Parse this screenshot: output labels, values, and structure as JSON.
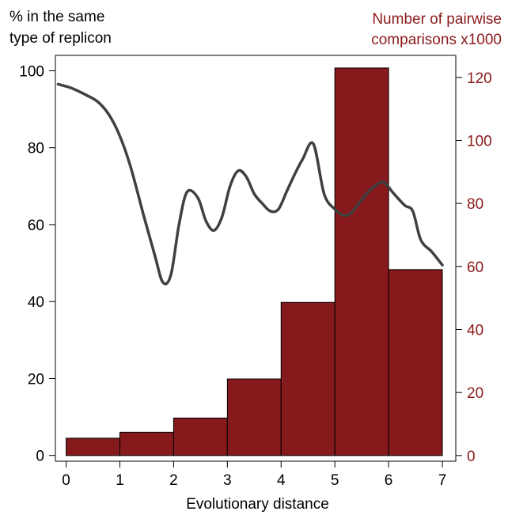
{
  "chart_data": {
    "type": "bar",
    "title": "",
    "xlabel": "Evolutionary distance",
    "ylabel_left": "% in the same\ntype of replicon",
    "ylabel_right": "Number of pairwise\ncomparisons x1000",
    "x_ticks": [
      "0",
      "1",
      "2",
      "3",
      "4",
      "5",
      "6",
      "7"
    ],
    "xlim": [
      -0.2,
      7.25
    ],
    "y_left_ticks": [
      "0",
      "20",
      "40",
      "60",
      "80",
      "100"
    ],
    "y_left_lim": [
      -1.5,
      104
    ],
    "y_right_ticks": [
      "0",
      "20",
      "40",
      "60",
      "80",
      "100",
      "120"
    ],
    "y_right_lim": [
      -1.8,
      127
    ],
    "grid": false,
    "bar_color": "#85191b",
    "right_axis_color": "#8b1a1a",
    "line_color": "#404040",
    "bars": {
      "axis": "right",
      "bins": [
        [
          0,
          1
        ],
        [
          1,
          2
        ],
        [
          2,
          3
        ],
        [
          3,
          4
        ],
        [
          4,
          5
        ],
        [
          5,
          6
        ],
        [
          6,
          7
        ]
      ],
      "values": [
        5.5,
        7.4,
        11.9,
        24.3,
        48.6,
        123.0,
        59.0
      ]
    },
    "line": {
      "axis": "left",
      "x": [
        -0.15,
        0.1,
        0.4,
        0.6,
        0.8,
        1.0,
        1.2,
        1.45,
        1.65,
        1.8,
        1.95,
        2.1,
        2.25,
        2.45,
        2.6,
        2.75,
        2.9,
        3.05,
        3.2,
        3.35,
        3.5,
        3.65,
        3.8,
        3.95,
        4.1,
        4.25,
        4.4,
        4.6,
        4.8,
        5.0,
        5.15,
        5.3,
        5.5,
        5.7,
        5.9,
        6.1,
        6.3,
        6.45,
        6.6,
        6.8,
        7.0
      ],
      "y": [
        96.5,
        95.5,
        93.5,
        91.8,
        88.5,
        83.0,
        75.0,
        62.0,
        52.0,
        45.0,
        47.0,
        60.0,
        68.5,
        67.0,
        61.0,
        58.5,
        62.0,
        70.0,
        74.0,
        72.5,
        68.0,
        65.5,
        63.5,
        64.0,
        68.5,
        73.0,
        77.0,
        81.0,
        68.0,
        64.0,
        62.5,
        63.0,
        66.5,
        69.5,
        71.0,
        68.0,
        65.0,
        63.5,
        56.0,
        53.0,
        49.5
      ]
    }
  }
}
